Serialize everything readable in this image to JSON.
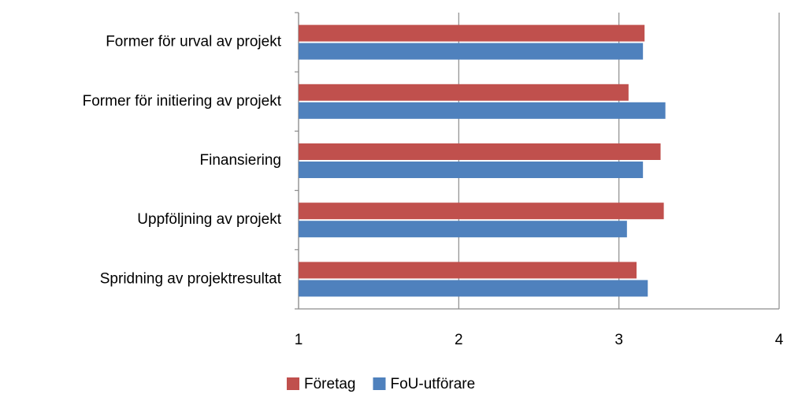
{
  "chart_data": {
    "type": "bar",
    "orientation": "horizontal",
    "categories": [
      "Former för urval av projekt",
      "Former för initiering av projekt",
      "Finansiering",
      "Uppföljning av projekt",
      "Spridning av projektresultat"
    ],
    "series": [
      {
        "name": "Företag",
        "color": "#c0504d",
        "values": [
          3.16,
          3.06,
          3.26,
          3.28,
          3.11
        ]
      },
      {
        "name": "FoU-utförare",
        "color": "#4f81bd",
        "values": [
          3.15,
          3.29,
          3.15,
          3.05,
          3.18
        ]
      }
    ],
    "xlim": [
      1,
      4
    ],
    "xticks": [
      1,
      2,
      3,
      4
    ],
    "grid": true,
    "legend": "bottom"
  }
}
